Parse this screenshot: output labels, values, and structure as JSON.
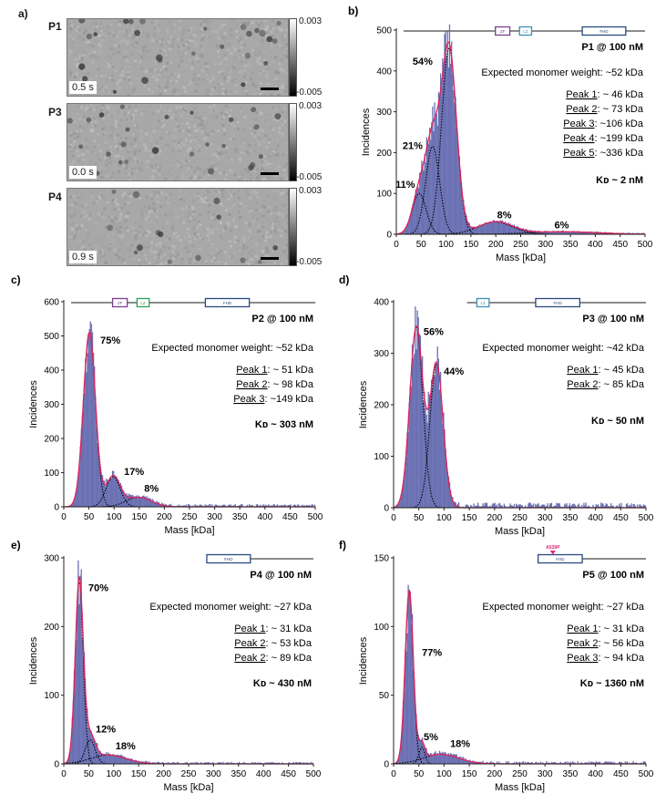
{
  "panel_a": {
    "letter": "a)",
    "colorbar": {
      "max": "0.003",
      "min": "-0.005"
    },
    "images": [
      {
        "label": "P1",
        "time": "0.5 s"
      },
      {
        "label": "P3",
        "time": "0.0 s"
      },
      {
        "label": "P4",
        "time": "0.9 s"
      }
    ]
  },
  "colors": {
    "histogram_fill": "#6b71b3",
    "histogram_edge": "#5a60b0",
    "fit_total": "#e0245e",
    "fit_component": "#000000",
    "domain_zf": "#7b3f8f",
    "domain_lz_b": "#3d8fb5",
    "domain_lz_c": "#2e9e5b",
    "domain_fhd": "#2a4a7f",
    "mutation": "#e0247a"
  },
  "chart_data": [
    {
      "id": "b",
      "type": "bar",
      "letter": "b)",
      "title": "P1 @ 100 nM",
      "xlabel": "Mass [kDa]",
      "ylabel": "Incidences",
      "xlim": [
        0,
        500
      ],
      "ylim": [
        0,
        500
      ],
      "xticks": [
        0,
        50,
        100,
        150,
        200,
        250,
        300,
        350,
        400,
        450,
        500
      ],
      "yticks": [
        0,
        100,
        200,
        300,
        400,
        500
      ],
      "expected": "Expected monomer weight: ~52 kDa",
      "peaks": [
        {
          "name": "Peak 1",
          "value": ": ~  46 kDa"
        },
        {
          "name": "Peak 2",
          "value": ": ~  73 kDa"
        },
        {
          "name": "Peak 3",
          "value": ": ~106 kDa"
        },
        {
          "name": "Peak 4",
          "value": ": ~199 kDa"
        },
        {
          "name": "Peak 5",
          "value": ": ~336 kDa"
        }
      ],
      "kd": "Kᴅ ~ 2 nM",
      "components": [
        {
          "mu": 46,
          "sigma": 14,
          "amp": 100,
          "pct": "11%"
        },
        {
          "mu": 73,
          "sigma": 14,
          "amp": 215,
          "pct": "21%"
        },
        {
          "mu": 106,
          "sigma": 15,
          "amp": 455,
          "pct": "54%"
        },
        {
          "mu": 199,
          "sigma": 35,
          "amp": 30,
          "pct": "8%"
        },
        {
          "mu": 336,
          "sigma": 70,
          "amp": 6,
          "pct": "6%"
        }
      ],
      "noise_tail": 3,
      "domains": [
        {
          "label": "ZF",
          "kind": "zf",
          "start": 0.38,
          "end": 0.44
        },
        {
          "label": "LZ",
          "kind": "lz",
          "start": 0.48,
          "end": 0.53
        },
        {
          "label": "FHD",
          "kind": "fhd",
          "start": 0.74,
          "end": 0.92
        }
      ],
      "backbone": [
        0.0,
        1.0
      ],
      "mutation": null
    },
    {
      "id": "c",
      "type": "bar",
      "letter": "c)",
      "title": "P2 @ 100 nM",
      "xlabel": "Mass [kDa]",
      "ylabel": "Incidences",
      "xlim": [
        0,
        500
      ],
      "ylim": [
        0,
        600
      ],
      "xticks": [
        0,
        50,
        100,
        150,
        200,
        250,
        300,
        350,
        400,
        450,
        500
      ],
      "yticks": [
        0,
        100,
        200,
        300,
        400,
        500,
        600
      ],
      "expected": "Expected monomer weight: ~52 kDa",
      "peaks": [
        {
          "name": "Peak 1",
          "value": ":  ~ 51 kDa"
        },
        {
          "name": "Peak 2",
          "value": ":  ~ 98 kDa"
        },
        {
          "name": "Peak 3",
          "value": ": ~149 kDa"
        }
      ],
      "kd": "Kᴅ ~ 303 nM",
      "components": [
        {
          "mu": 51,
          "sigma": 12,
          "amp": 510,
          "pct": "75%"
        },
        {
          "mu": 98,
          "sigma": 14,
          "amp": 88,
          "pct": "17%"
        },
        {
          "mu": 149,
          "sigma": 25,
          "amp": 28,
          "pct": "8%"
        }
      ],
      "noise_tail": 8,
      "domains": [
        {
          "label": "ZF",
          "kind": "zf",
          "start": 0.17,
          "end": 0.23
        },
        {
          "label": "LZ",
          "kind": "lz_c",
          "start": 0.27,
          "end": 0.32
        },
        {
          "label": "FHD",
          "kind": "fhd",
          "start": 0.55,
          "end": 0.73
        }
      ],
      "backbone": [
        0.0,
        1.0
      ],
      "mutation": null
    },
    {
      "id": "d",
      "type": "bar",
      "letter": "d)",
      "title": "P3 @ 100 nM",
      "xlabel": "Mass [kDa]",
      "ylabel": "Incidences",
      "xlim": [
        0,
        500
      ],
      "ylim": [
        0,
        400
      ],
      "xticks": [
        0,
        50,
        100,
        150,
        200,
        250,
        300,
        350,
        400,
        450,
        500
      ],
      "yticks": [
        0,
        100,
        200,
        300,
        400
      ],
      "expected": "Expected monomer weight: ~42 kDa",
      "peaks": [
        {
          "name": "Peak 1",
          "value": ": ~ 45 kDa"
        },
        {
          "name": "Peak 2",
          "value": ": ~ 85 kDa"
        }
      ],
      "kd": "Kᴅ ~ 50 nM",
      "components": [
        {
          "mu": 45,
          "sigma": 13,
          "amp": 350,
          "pct": "56%"
        },
        {
          "mu": 85,
          "sigma": 13,
          "amp": 280,
          "pct": "44%"
        }
      ],
      "noise_tail": 10,
      "domains": [
        {
          "label": "LZ",
          "kind": "lz",
          "start": 0.31,
          "end": 0.36
        },
        {
          "label": "FHD",
          "kind": "fhd",
          "start": 0.55,
          "end": 0.73
        }
      ],
      "backbone": [
        0.27,
        1.0
      ],
      "mutation": null
    },
    {
      "id": "e",
      "type": "bar",
      "letter": "e)",
      "title": "P4 @ 100 nM",
      "xlabel": "Mass [kDa]",
      "ylabel": "Incidences",
      "xlim": [
        0,
        500
      ],
      "ylim": [
        0,
        300
      ],
      "xticks": [
        0,
        50,
        100,
        150,
        200,
        250,
        300,
        350,
        400,
        450,
        500
      ],
      "yticks": [
        0,
        100,
        200,
        300
      ],
      "expected": "Expected monomer weight: ~27 kDa",
      "peaks": [
        {
          "name": "Peak 1",
          "value": ": ~ 31 kDa"
        },
        {
          "name": "Peak 2",
          "value": ": ~ 53 kDa"
        },
        {
          "name": "Peak 2",
          "value": ": ~ 89 kDa"
        }
      ],
      "kd": "Kᴅ ~ 430 nM",
      "components": [
        {
          "mu": 31,
          "sigma": 8,
          "amp": 265,
          "pct": "70%"
        },
        {
          "mu": 53,
          "sigma": 10,
          "amp": 35,
          "pct": "12%"
        },
        {
          "mu": 89,
          "sigma": 35,
          "amp": 13,
          "pct": "18%"
        }
      ],
      "noise_tail": 3,
      "domains": [
        {
          "label": "FHD",
          "kind": "fhd",
          "start": 0.56,
          "end": 0.74
        }
      ],
      "backbone": [
        0.56,
        1.0
      ],
      "mutation": null
    },
    {
      "id": "f",
      "type": "bar",
      "letter": "f)",
      "title": "P5 @ 100 nM",
      "xlabel": "Mass [kDa]",
      "ylabel": "Incidences",
      "xlim": [
        0,
        500
      ],
      "ylim": [
        0,
        150
      ],
      "xticks": [
        0,
        50,
        100,
        150,
        200,
        250,
        300,
        350,
        400,
        450,
        500
      ],
      "yticks": [
        0,
        50,
        100,
        150
      ],
      "expected": "Expected monomer weight: ~27 kDa",
      "peaks": [
        {
          "name": "Peak 1",
          "value": ": ~ 31 kDa"
        },
        {
          "name": "Peak 2",
          "value": ": ~ 56 kDa"
        },
        {
          "name": "Peak 3",
          "value": ": ~ 94 kDa"
        }
      ],
      "kd": "Kᴅ ~ 1360 nM",
      "components": [
        {
          "mu": 31,
          "sigma": 8,
          "amp": 125,
          "pct": "77%"
        },
        {
          "mu": 56,
          "sigma": 6,
          "amp": 12,
          "pct": "5%"
        },
        {
          "mu": 94,
          "sigma": 35,
          "amp": 7,
          "pct": "18%"
        }
      ],
      "noise_tail": 2,
      "domains": [
        {
          "label": "FHD",
          "kind": "fhd",
          "start": 0.56,
          "end": 0.74
        }
      ],
      "backbone": [
        0.56,
        1.0
      ],
      "mutation": {
        "label": "A539P",
        "at": 0.62
      }
    }
  ]
}
